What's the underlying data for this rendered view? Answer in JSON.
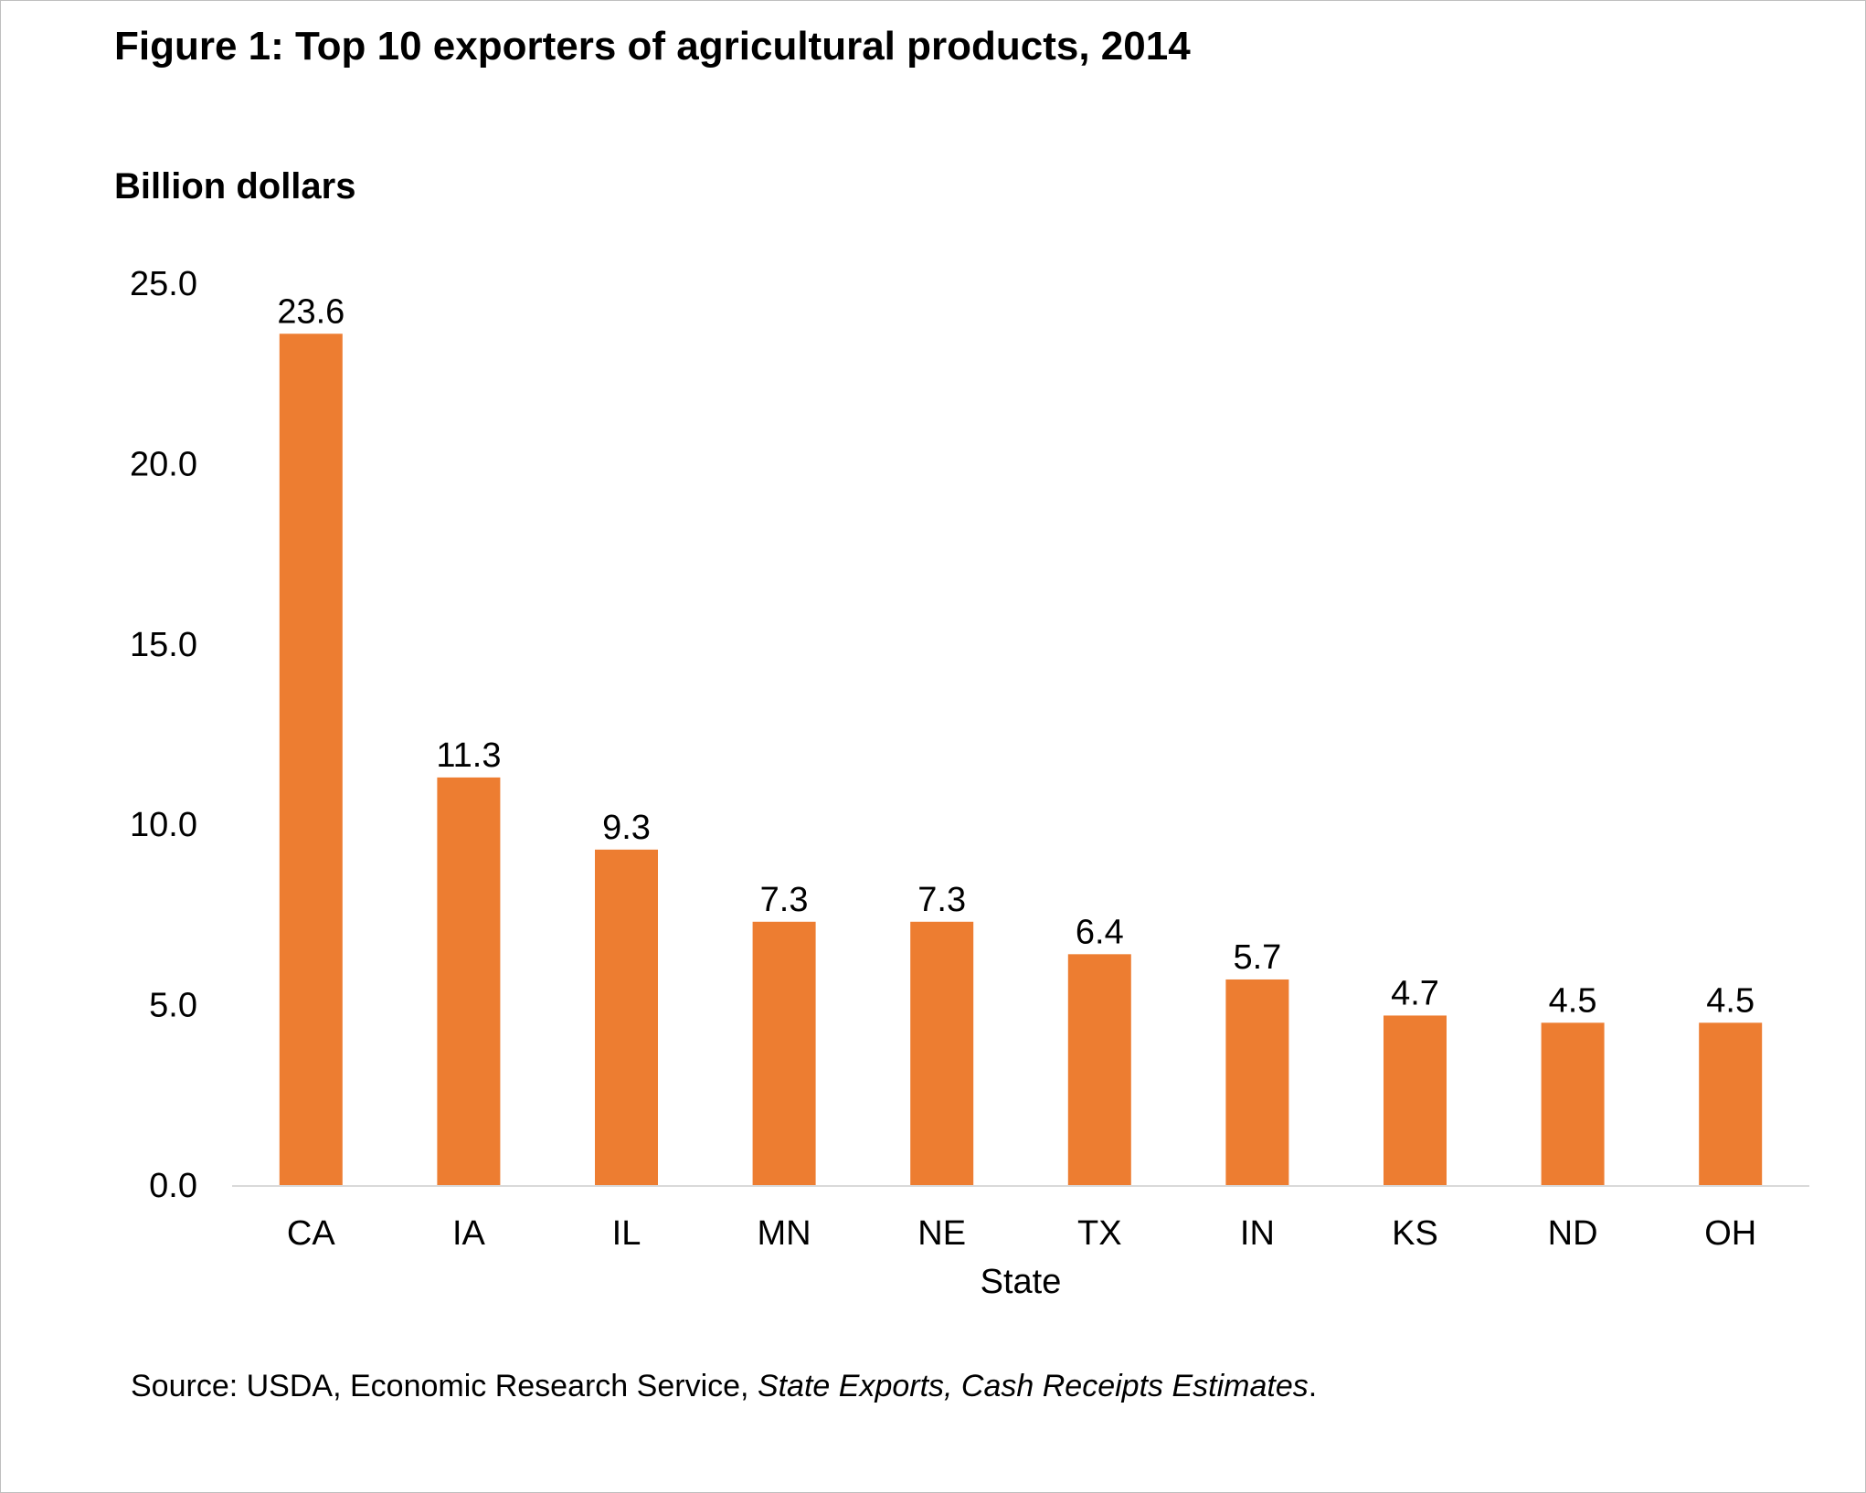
{
  "chart_data": {
    "type": "bar",
    "title": "Figure 1: Top 10 exporters of agricultural products, 2014",
    "ylabel": "Billion dollars",
    "xlabel": "State",
    "categories": [
      "CA",
      "IA",
      "IL",
      "MN",
      "NE",
      "TX",
      "IN",
      "KS",
      "ND",
      "OH"
    ],
    "values": [
      23.6,
      11.3,
      9.3,
      7.3,
      7.3,
      6.4,
      5.7,
      4.7,
      4.5,
      4.5
    ],
    "value_labels": [
      "23.6",
      "11.3",
      "9.3",
      "7.3",
      "7.3",
      "6.4",
      "5.7",
      "4.7",
      "4.5",
      "4.5"
    ],
    "ylim": [
      0,
      25
    ],
    "yticks": [
      0,
      5,
      10,
      15,
      20,
      25
    ],
    "ytick_labels": [
      "0.0",
      "5.0",
      "10.0",
      "15.0",
      "20.0",
      "25.0"
    ],
    "bar_color": "#ED7D31",
    "grid": false,
    "legend": "none"
  },
  "source": {
    "prefix": "Source: USDA, Economic Research Service, ",
    "italic": "State Exports, Cash Receipts Estimates",
    "suffix": "."
  }
}
